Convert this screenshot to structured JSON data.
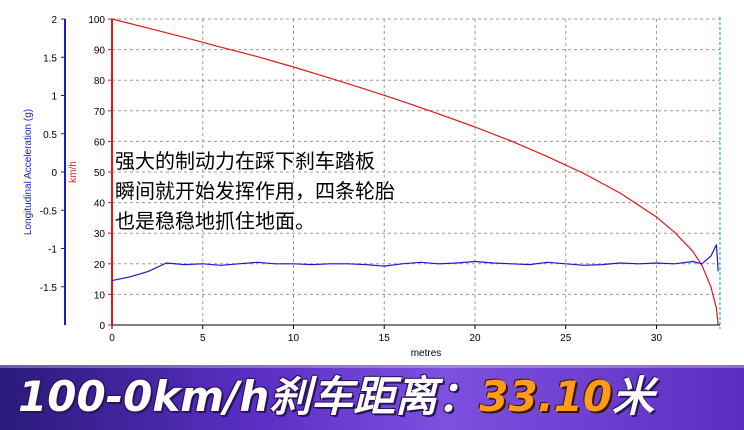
{
  "chart_data": {
    "type": "line",
    "xlabel": "metres",
    "x_ticks": [
      0,
      5,
      10,
      15,
      20,
      25,
      30
    ],
    "xlim": [
      0,
      33.5
    ],
    "y_left": {
      "label": "Longitudinal Acceleration (g)",
      "ticks": [
        "2",
        "1.5",
        "1",
        "0.5",
        "0",
        "-0.5",
        "-1",
        "-1.5"
      ],
      "tick_values": [
        2,
        1.5,
        1,
        0.5,
        0,
        -0.5,
        -1,
        -1.5
      ],
      "ylim": [
        -2,
        2
      ],
      "color": "#1a1acc"
    },
    "y_right": {
      "label": "km/h",
      "ticks": [
        "100",
        "90",
        "80",
        "70",
        "60",
        "50",
        "40",
        "30",
        "20",
        "10",
        "0"
      ],
      "tick_values": [
        100,
        90,
        80,
        70,
        60,
        50,
        40,
        30,
        20,
        10,
        0
      ],
      "ylim": [
        0,
        100
      ],
      "color": "#e01818"
    },
    "grid": true,
    "series": [
      {
        "axis": "speed",
        "color": "#e01818",
        "x": [
          0,
          2,
          4,
          6,
          8,
          10,
          12,
          14,
          16,
          18,
          20,
          22,
          24,
          26,
          28,
          30,
          31,
          32,
          32.5,
          33,
          33.3,
          33.4
        ],
        "y": [
          100,
          97,
          94,
          90.8,
          87.7,
          84.3,
          80.7,
          77,
          73.1,
          69,
          64.7,
          60.1,
          55,
          49.5,
          43.1,
          35.3,
          30.3,
          24.1,
          19.5,
          12.5,
          5.5,
          0
        ]
      },
      {
        "axis": "acceleration",
        "color": "#1a1acc",
        "x": [
          0,
          1,
          2,
          3,
          4,
          5,
          6,
          7,
          8,
          9,
          10,
          11,
          12,
          13,
          14,
          15,
          16,
          17,
          18,
          19,
          20,
          21,
          22,
          23,
          24,
          25,
          26,
          27,
          28,
          29,
          30,
          31,
          32,
          32.5,
          33,
          33.3,
          33.4
        ],
        "y": [
          -1.42,
          -1.37,
          -1.3,
          -1.19,
          -1.21,
          -1.2,
          -1.22,
          -1.2,
          -1.18,
          -1.2,
          -1.2,
          -1.21,
          -1.2,
          -1.2,
          -1.21,
          -1.23,
          -1.2,
          -1.18,
          -1.2,
          -1.19,
          -1.17,
          -1.19,
          -1.2,
          -1.21,
          -1.18,
          -1.2,
          -1.22,
          -1.21,
          -1.19,
          -1.2,
          -1.19,
          -1.2,
          -1.17,
          -1.2,
          -1.1,
          -0.95,
          -1.3
        ]
      }
    ]
  },
  "caption": {
    "lines": [
      "强大的制动力在踩下刹车踏板",
      "瞬间就开始发挥作用，四条轮胎",
      "也是稳稳地抓住地面。"
    ]
  },
  "banner": {
    "label": "100-0km/h刹车距离：",
    "value": "33.10",
    "unit": "米"
  }
}
